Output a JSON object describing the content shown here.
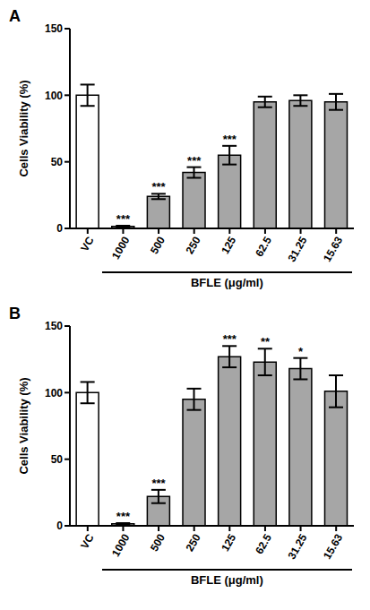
{
  "chart_data": [
    {
      "type": "bar",
      "panel": "A",
      "y_label": "Cells Viability (%)",
      "x_label": "BFLE (μg/ml)",
      "categories": [
        "VC",
        "1000",
        "500",
        "250",
        "125",
        "62.5",
        "31.25",
        "15.63"
      ],
      "values": [
        100,
        1.5,
        24,
        42,
        55,
        95,
        96,
        95
      ],
      "errors": [
        8,
        0.5,
        2,
        4,
        7,
        4,
        4,
        6
      ],
      "significance": [
        null,
        "***",
        "***",
        "***",
        "***",
        null,
        null,
        null
      ],
      "colors": [
        "#ffffff",
        "#a6a6a6",
        "#a6a6a6",
        "#a6a6a6",
        "#a6a6a6",
        "#a6a6a6",
        "#a6a6a6",
        "#a6a6a6"
      ],
      "ylim": [
        0,
        150
      ],
      "yticks": [
        0,
        50,
        100,
        150
      ]
    },
    {
      "type": "bar",
      "panel": "B",
      "y_label": "Cells Viability (%)",
      "x_label": "BFLE (μg/ml)",
      "categories": [
        "VC",
        "1000",
        "500",
        "250",
        "125",
        "62.5",
        "31.25",
        "15.63"
      ],
      "values": [
        100,
        1.5,
        22,
        95,
        127,
        123,
        118,
        101
      ],
      "errors": [
        8,
        0.5,
        5,
        8,
        8,
        10,
        8,
        12
      ],
      "significance": [
        null,
        "***",
        "***",
        null,
        "***",
        "**",
        "*",
        null
      ],
      "colors": [
        "#ffffff",
        "#a6a6a6",
        "#a6a6a6",
        "#a6a6a6",
        "#a6a6a6",
        "#a6a6a6",
        "#a6a6a6",
        "#a6a6a6"
      ],
      "ylim": [
        0,
        150
      ],
      "yticks": [
        0,
        50,
        100,
        150
      ]
    }
  ]
}
